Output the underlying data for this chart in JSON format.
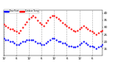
{
  "bg_color": "#ffffff",
  "plot_bg_color": "#ffffff",
  "legend_labels": [
    "Outdoor Temp",
    "Dew Point"
  ],
  "legend_colors": [
    "#ff0000",
    "#0000ff"
  ],
  "temp_x": [
    0,
    1,
    2,
    3,
    4,
    5,
    6,
    7,
    8,
    9,
    10,
    11,
    12,
    13,
    14,
    15,
    16,
    17,
    18,
    19,
    20,
    21,
    22,
    23,
    24,
    25,
    26,
    27,
    28,
    29,
    30,
    31,
    32,
    33,
    34,
    35,
    36,
    37,
    38,
    39,
    40,
    41,
    42,
    43,
    44,
    45,
    46,
    47
  ],
  "temp_y": [
    32,
    31,
    30,
    29,
    29,
    28,
    27,
    26,
    28,
    30,
    32,
    34,
    36,
    37,
    38,
    37,
    35,
    33,
    32,
    31,
    33,
    35,
    37,
    38,
    38,
    37,
    36,
    35,
    33,
    32,
    31,
    30,
    29,
    28,
    27,
    28,
    29,
    30,
    31,
    30,
    29,
    28,
    27,
    26,
    25,
    26,
    27,
    28
  ],
  "dew_x": [
    0,
    1,
    2,
    3,
    4,
    5,
    6,
    7,
    8,
    9,
    10,
    11,
    12,
    13,
    14,
    15,
    16,
    17,
    18,
    19,
    20,
    21,
    22,
    23,
    24,
    25,
    26,
    27,
    28,
    29,
    30,
    31,
    32,
    33,
    34,
    35,
    36,
    37,
    38,
    39,
    40,
    41,
    42,
    43,
    44,
    45,
    46,
    47
  ],
  "dew_y": [
    22,
    21,
    21,
    20,
    20,
    19,
    18,
    18,
    19,
    20,
    20,
    21,
    21,
    21,
    21,
    20,
    19,
    19,
    18,
    18,
    19,
    20,
    21,
    22,
    22,
    21,
    20,
    20,
    19,
    19,
    18,
    17,
    17,
    16,
    16,
    17,
    18,
    19,
    20,
    19,
    18,
    17,
    17,
    16,
    15,
    16,
    17,
    18
  ],
  "temp_color": "#ff0000",
  "dew_color": "#0000ff",
  "ylim": [
    10,
    42
  ],
  "xlim": [
    0,
    47
  ],
  "grid_x": [
    0,
    6,
    12,
    18,
    24,
    30,
    36,
    42,
    48
  ],
  "xtick_vals": [
    0,
    6,
    12,
    18,
    24,
    30,
    36,
    42
  ],
  "xtick_labels": [
    "12",
    "6",
    "12",
    "6",
    "12",
    "6",
    "12",
    "6"
  ],
  "ytick_vals": [
    15,
    20,
    25,
    30,
    35,
    40
  ],
  "ytick_labels": [
    "15",
    "20",
    "25",
    "30",
    "35",
    "40"
  ],
  "marker_size": 2.5
}
